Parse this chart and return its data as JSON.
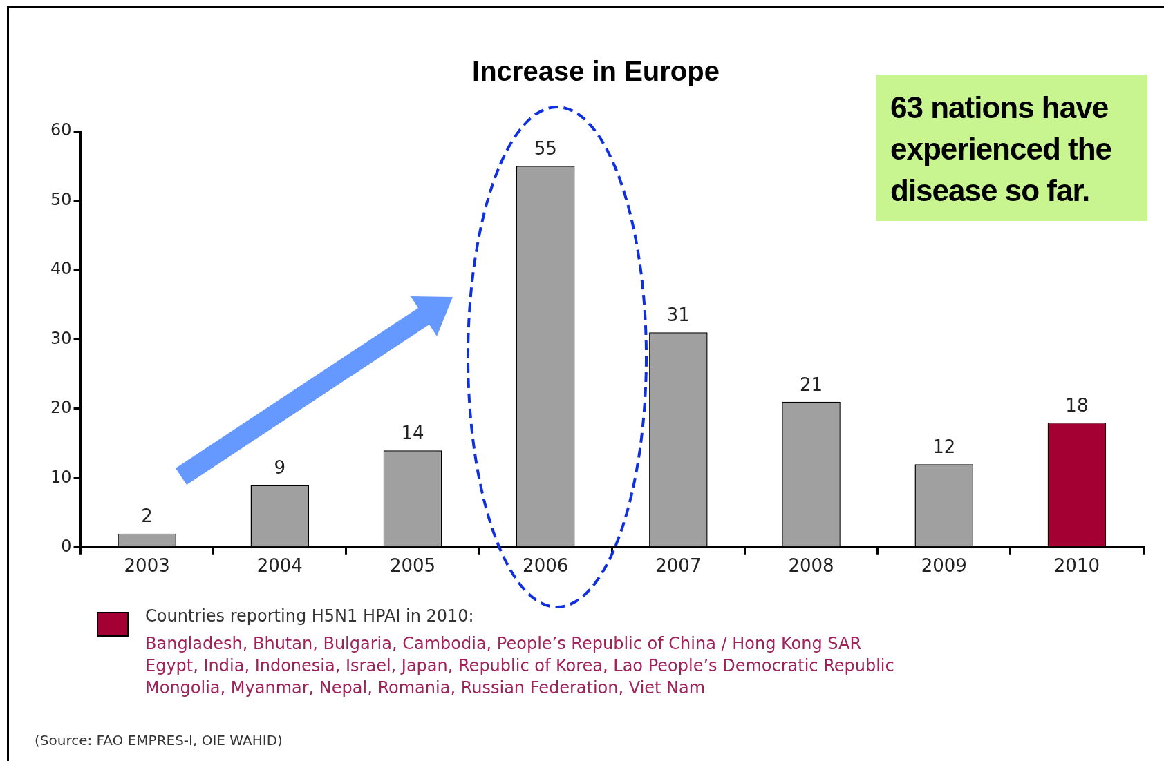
{
  "chart_data": {
    "type": "bar",
    "title": "Increase in Europe",
    "categories": [
      "2003",
      "2004",
      "2005",
      "2006",
      "2007",
      "2008",
      "2009",
      "2010"
    ],
    "values": [
      2,
      9,
      14,
      55,
      31,
      21,
      12,
      18
    ],
    "colors": [
      "#a0a0a0",
      "#a0a0a0",
      "#a0a0a0",
      "#a0a0a0",
      "#a0a0a0",
      "#a0a0a0",
      "#a0a0a0",
      "#a50034"
    ],
    "ylim": [
      0,
      60
    ],
    "yticks": [
      0,
      10,
      20,
      30,
      40,
      50,
      60
    ],
    "grid": false,
    "data_labels": true,
    "annotations": [
      "63 nations have experienced the disease so far.",
      "Countries reporting H5N1 HPAI in 2010:",
      "Bangladesh, Bhutan, Bulgaria, Cambodia, People’s Republic of  China / Hong Kong SAR",
      "Egypt, India, Indonesia, Israel, Japan, Republic of Korea, Lao People’s Democratic Republic",
      "Mongolia, Myanmar, Nepal, Romania, Russian Federation, Viet Nam",
      "(Source: FAO EMPRES-I, OIE WAHID)"
    ]
  }
}
